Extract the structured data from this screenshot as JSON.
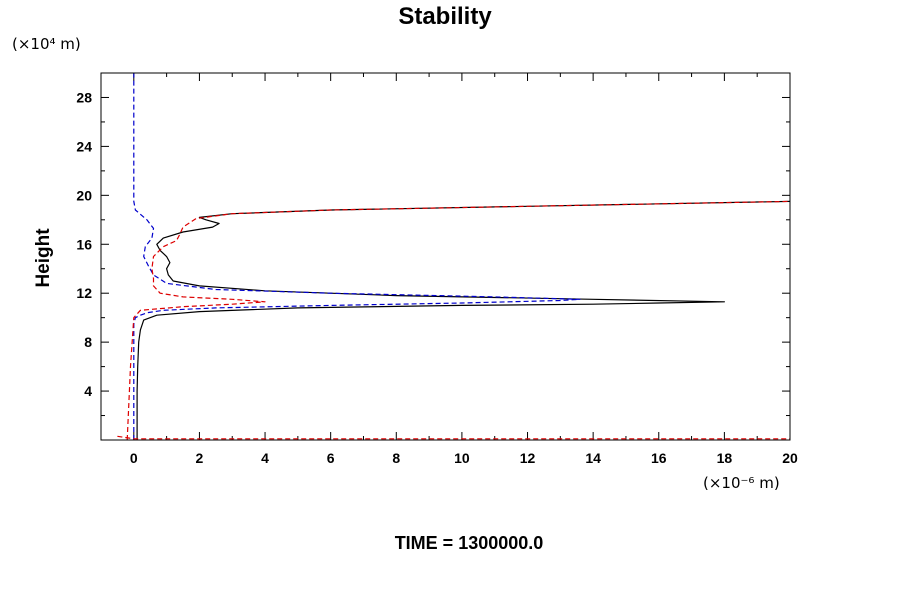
{
  "chart_data": {
    "type": "line",
    "title": "Stability",
    "ylabel": "Height",
    "xlabel": "",
    "y_unit": "(×10⁴ m)",
    "x_unit": "(×10⁻⁶ m)",
    "footer": "TIME = 1300000.0",
    "xlim": [
      -1,
      20
    ],
    "ylim": [
      0,
      30
    ],
    "x_ticks": [
      0,
      2,
      4,
      6,
      8,
      10,
      12,
      14,
      16,
      18,
      20
    ],
    "y_ticks": [
      4,
      8,
      12,
      16,
      20,
      24,
      28
    ],
    "grid": false,
    "series": [
      {
        "color": "#000000",
        "dash": "solid",
        "x": [
          0.1,
          0.1,
          0.12,
          0.15,
          0.2,
          0.3,
          0.7,
          2,
          5,
          10,
          14,
          16,
          18,
          14,
          8,
          4,
          2,
          1.2,
          1.05,
          1.0,
          1.1,
          1.0,
          0.8,
          0.7,
          0.9,
          1.5,
          2.4,
          2.6,
          2.2,
          2.0,
          3,
          6,
          12,
          20
        ],
        "y": [
          0,
          4,
          6,
          8,
          9,
          9.8,
          10.2,
          10.5,
          10.8,
          11,
          11.1,
          11.2,
          11.3,
          11.5,
          11.8,
          12.2,
          12.6,
          13,
          13.5,
          14,
          14.5,
          15,
          15.5,
          16,
          16.5,
          17,
          17.4,
          17.7,
          18,
          18.2,
          18.5,
          18.8,
          19.1,
          19.5
        ]
      },
      {
        "color": "#0000cc",
        "dash": "dashed",
        "x": [
          0.0,
          0.0,
          0.05,
          0.2,
          0.4,
          0.9,
          2.5,
          6,
          10,
          13,
          13.6,
          11,
          6,
          2.5,
          1.0,
          0.6,
          0.45,
          0.3,
          0.35,
          0.55,
          0.6,
          0.4,
          0.05,
          0.0,
          0.0
        ],
        "y": [
          0,
          9.5,
          10.0,
          10.2,
          10.4,
          10.6,
          10.8,
          11.0,
          11.2,
          11.4,
          11.5,
          11.7,
          12.0,
          12.3,
          12.8,
          13.5,
          14.2,
          15.0,
          15.8,
          16.5,
          17.3,
          18.0,
          18.8,
          19.5,
          30
        ]
      },
      {
        "color": "#dd0000",
        "dash": "dashed",
        "x": [
          -0.2,
          -0.1,
          0.0,
          0.2,
          1.5,
          3,
          4,
          3,
          1.5,
          0.8,
          0.6,
          0.6,
          0.55,
          0.6,
          0.9,
          1.3,
          1.4,
          1.5,
          1.9,
          3,
          6,
          12,
          20
        ],
        "y": [
          0,
          6,
          10.0,
          10.6,
          10.9,
          11.1,
          11.3,
          11.5,
          11.7,
          12.0,
          12.6,
          13.2,
          14.0,
          15.0,
          15.8,
          16.3,
          16.8,
          17.4,
          18.1,
          18.5,
          18.8,
          19.1,
          19.5
        ]
      },
      {
        "color": "#dd0000",
        "dash": "dashed",
        "x": [
          -0.5,
          0,
          5,
          10,
          15,
          20
        ],
        "y": [
          0.3,
          0.1,
          0.1,
          0.1,
          0.1,
          0.1
        ]
      }
    ]
  }
}
